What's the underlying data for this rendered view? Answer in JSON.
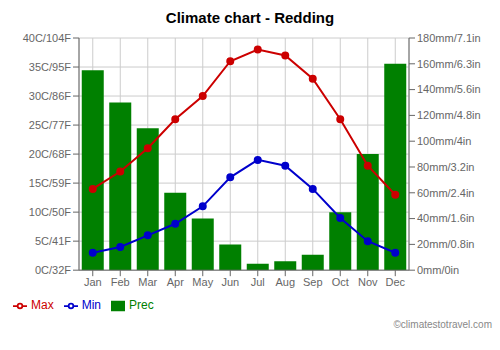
{
  "chart_data": {
    "type": "combo",
    "title": "Climate chart - Redding",
    "categories": [
      "Jan",
      "Feb",
      "Mar",
      "Apr",
      "May",
      "Jun",
      "Jul",
      "Aug",
      "Sep",
      "Oct",
      "Nov",
      "Dec"
    ],
    "series": [
      {
        "name": "Prec",
        "type": "bar",
        "axis": "y2",
        "color": "#008000",
        "values": [
          155,
          130,
          110,
          60,
          40,
          20,
          5,
          7,
          12,
          45,
          90,
          160
        ]
      },
      {
        "name": "Min",
        "type": "line",
        "color": "#0000cc",
        "marker": "circle",
        "values": [
          3,
          4,
          6,
          8,
          11,
          16,
          19,
          18,
          14,
          9,
          5,
          3
        ]
      },
      {
        "name": "Max",
        "type": "line",
        "color": "#cc0000",
        "marker": "circle",
        "values": [
          14,
          17,
          21,
          26,
          30,
          36,
          38,
          37,
          33,
          26,
          18,
          13
        ]
      }
    ],
    "ylim": [
      0,
      40
    ],
    "yticks": [
      {
        "value": 0,
        "label": "0C/32F"
      },
      {
        "value": 5,
        "label": "5C/41F"
      },
      {
        "value": 10,
        "label": "10C/50F"
      },
      {
        "value": 15,
        "label": "15C/59F"
      },
      {
        "value": 20,
        "label": "20C/68F"
      },
      {
        "value": 25,
        "label": "25C/77F"
      },
      {
        "value": 30,
        "label": "30C/86F"
      },
      {
        "value": 35,
        "label": "35C/95F"
      },
      {
        "value": 40,
        "label": "40C/104F"
      }
    ],
    "y2lim": [
      0,
      180
    ],
    "y2ticks": [
      {
        "value": 0,
        "label": "0mm/0in"
      },
      {
        "value": 20,
        "label": "20mm/0.8in"
      },
      {
        "value": 40,
        "label": "40mm/1.6in"
      },
      {
        "value": 60,
        "label": "60mm/2.4in"
      },
      {
        "value": 80,
        "label": "80mm/3.2in"
      },
      {
        "value": 100,
        "label": "100mm/4in"
      },
      {
        "value": 120,
        "label": "120mm/4.8in"
      },
      {
        "value": 140,
        "label": "140mm/5.6in"
      },
      {
        "value": 160,
        "label": "160mm/6.3in"
      },
      {
        "value": 180,
        "label": "180mm/7.1in"
      }
    ],
    "grid": true,
    "legend": "bottom",
    "annotations": [
      {
        "text": "©climatestotravel.com"
      }
    ]
  }
}
